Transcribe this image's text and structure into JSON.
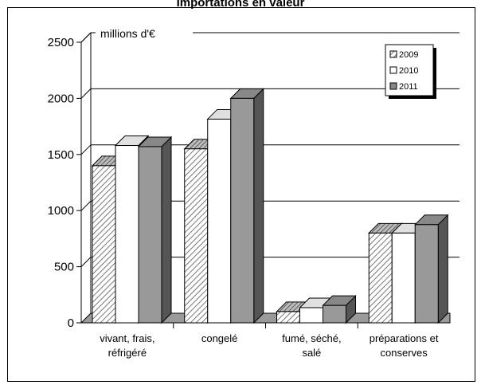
{
  "chart_data": {
    "type": "bar",
    "title": "Importations en valeur",
    "unit_label": "millions d'€",
    "categories": [
      [
        "vivant, frais,",
        "réfrigéré"
      ],
      [
        "congelé"
      ],
      [
        "fumé, séché,",
        "salé"
      ],
      [
        "préparations et",
        "conserves"
      ]
    ],
    "series": [
      {
        "name": "2009",
        "values": [
          1400,
          1550,
          100,
          800
        ]
      },
      {
        "name": "2010",
        "values": [
          1580,
          1815,
          135,
          800
        ]
      },
      {
        "name": "2011",
        "values": [
          1570,
          2000,
          155,
          875
        ]
      }
    ],
    "ylim": [
      0,
      2500
    ],
    "yticks": [
      0,
      500,
      1000,
      1500,
      2000,
      2500
    ],
    "grid": true,
    "legend_position": "top-right",
    "three_d": true
  }
}
